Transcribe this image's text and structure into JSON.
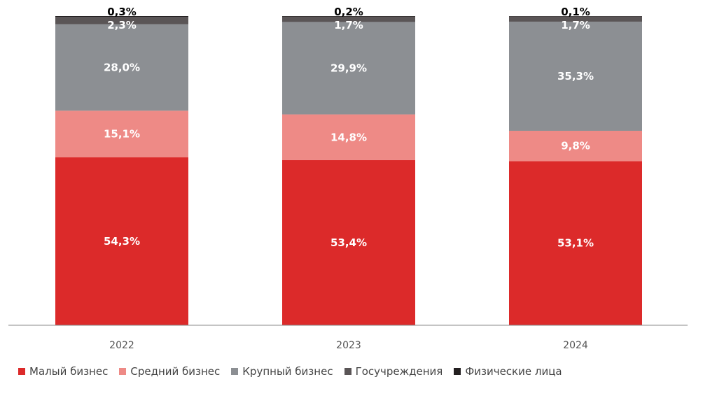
{
  "chart_data": {
    "type": "bar",
    "stacked": true,
    "orientation": "vertical",
    "categories": [
      "2022",
      "2023",
      "2024"
    ],
    "series": [
      {
        "name": "Малый бизнес",
        "values": [
          54.3,
          53.4,
          53.1
        ],
        "labels": [
          "54,3%",
          "53,4%",
          "53,1%"
        ],
        "color": "#dc2a2a"
      },
      {
        "name": "Средний бизнес",
        "values": [
          15.1,
          14.8,
          9.8
        ],
        "labels": [
          "15,1%",
          "14,8%",
          "9,8%"
        ],
        "color": "#ee8a86"
      },
      {
        "name": "Крупный бизнес",
        "values": [
          28.0,
          29.9,
          35.3
        ],
        "labels": [
          "28,0%",
          "29,9%",
          "35,3%"
        ],
        "color": "#8c8f93"
      },
      {
        "name": "Госучреждения",
        "values": [
          2.3,
          1.7,
          1.7
        ],
        "labels": [
          "2,3%",
          "1,7%",
          "1,7%"
        ],
        "color": "#5a5556"
      },
      {
        "name": "Физические лица",
        "values": [
          0.3,
          0.2,
          0.1
        ],
        "labels": [
          "0,3%",
          "0,2%",
          "0,1%"
        ],
        "color": "#231f20"
      }
    ],
    "ylim": [
      0,
      100
    ],
    "grid": false,
    "legend_position": "bottom-left"
  }
}
